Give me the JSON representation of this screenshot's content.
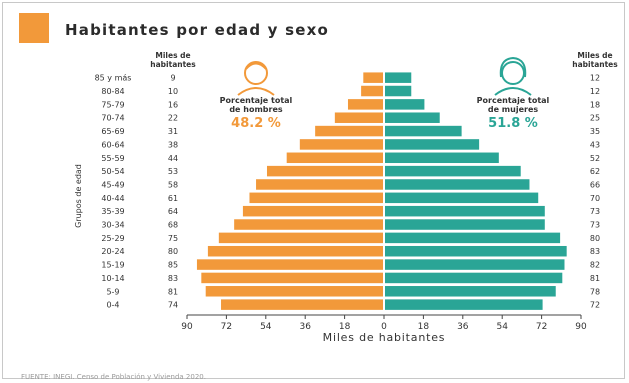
{
  "chart_data": {
    "type": "bar",
    "subtype": "population-pyramid",
    "title": "Habitantes por edad y sexo",
    "ylabel": "Grupos de edad",
    "xlabel": "Miles de habitantes",
    "left_col_header": "Miles de habitantes",
    "right_col_header": "Miles de habitantes",
    "categories": [
      "85 y más",
      "80-84",
      "75-79",
      "70-74",
      "65-69",
      "60-64",
      "55-59",
      "50-54",
      "45-49",
      "40-44",
      "35-39",
      "30-34",
      "25-29",
      "20-24",
      "15-19",
      "10-14",
      "5-9",
      "0-4"
    ],
    "series": [
      {
        "name": "Porcentaje total de hombres",
        "side": "left",
        "color": "#f2993a",
        "percent": "48.2 %",
        "values": [
          9,
          10,
          16,
          22,
          31,
          38,
          44,
          53,
          58,
          61,
          64,
          68,
          75,
          80,
          85,
          83,
          81,
          74
        ]
      },
      {
        "name": "Porcentaje total de mujeres",
        "side": "right",
        "color": "#2aa596",
        "percent": "51.8 %",
        "values": [
          12,
          12,
          18,
          25,
          35,
          43,
          52,
          62,
          66,
          70,
          73,
          73,
          80,
          83,
          82,
          81,
          78,
          72
        ]
      }
    ],
    "xticks": [
      "90",
      "72",
      "54",
      "36",
      "18",
      "0",
      "18",
      "36",
      "54",
      "72",
      "90"
    ],
    "xlim": [
      0,
      90
    ],
    "grid": false,
    "source": "FUENTE: INEGI. Censo de Población y Vivienda 2020."
  },
  "colors": {
    "accent": "#f2993a",
    "men": "#f2993a",
    "women": "#2aa596",
    "title": "#2b2b2b"
  }
}
